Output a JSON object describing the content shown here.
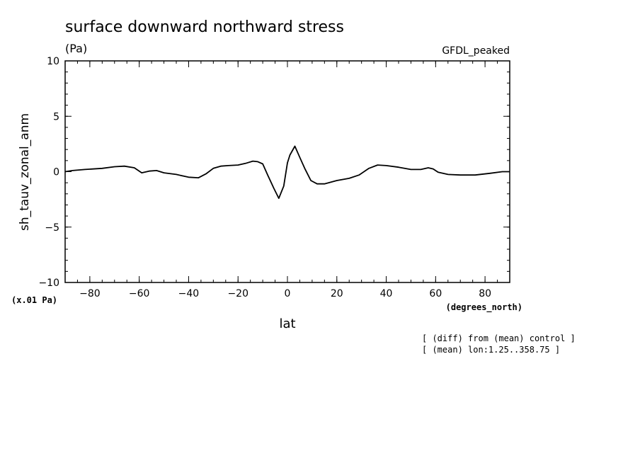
{
  "chart_data": {
    "type": "line",
    "title": "surface downward northward stress",
    "units": "(Pa)",
    "dataset": "GFDL_peaked",
    "ylabel": "sh_tauv_zonal_anm",
    "yscale_note": "(x.01 Pa)",
    "xlabel": "lat",
    "xunits": "(degrees_north)",
    "notes": [
      "[ (diff) from (mean) control ]",
      "[ (mean) lon:1.25..358.75 ]"
    ],
    "xlim": [
      -90,
      90
    ],
    "ylim": [
      -10,
      10
    ],
    "xticks": [
      -80,
      -60,
      -40,
      -20,
      0,
      20,
      40,
      60,
      80
    ],
    "yticks": [
      -10,
      -5,
      0,
      5,
      10
    ],
    "series": [
      {
        "color": "#000000",
        "x": [
          -90,
          -87,
          -82,
          -75,
          -70,
          -66,
          -62,
          -59,
          -56,
          -53,
          -50,
          -45,
          -40,
          -36,
          -33,
          -30,
          -27,
          -24,
          -20,
          -17,
          -14,
          -12,
          -10,
          -8,
          -5.5,
          -3.5,
          -1.5,
          0,
          1,
          3,
          5,
          7,
          9.5,
          12,
          15,
          20,
          25,
          29,
          33,
          36.5,
          40,
          45,
          50,
          54,
          57,
          59,
          61,
          65,
          70,
          76,
          82,
          87,
          90
        ],
        "y": [
          0,
          0.1,
          0.2,
          0.3,
          0.45,
          0.5,
          0.35,
          -0.1,
          0.05,
          0.1,
          -0.1,
          -0.25,
          -0.5,
          -0.55,
          -0.2,
          0.3,
          0.5,
          0.55,
          0.6,
          0.75,
          0.95,
          0.9,
          0.7,
          -0.3,
          -1.5,
          -2.4,
          -1.3,
          0.8,
          1.5,
          2.3,
          1.3,
          0.3,
          -0.8,
          -1.1,
          -1.1,
          -0.8,
          -0.6,
          -0.3,
          0.3,
          0.6,
          0.55,
          0.4,
          0.2,
          0.2,
          0.35,
          0.25,
          -0.05,
          -0.25,
          -0.3,
          -0.3,
          -0.15,
          0,
          0
        ]
      }
    ]
  }
}
